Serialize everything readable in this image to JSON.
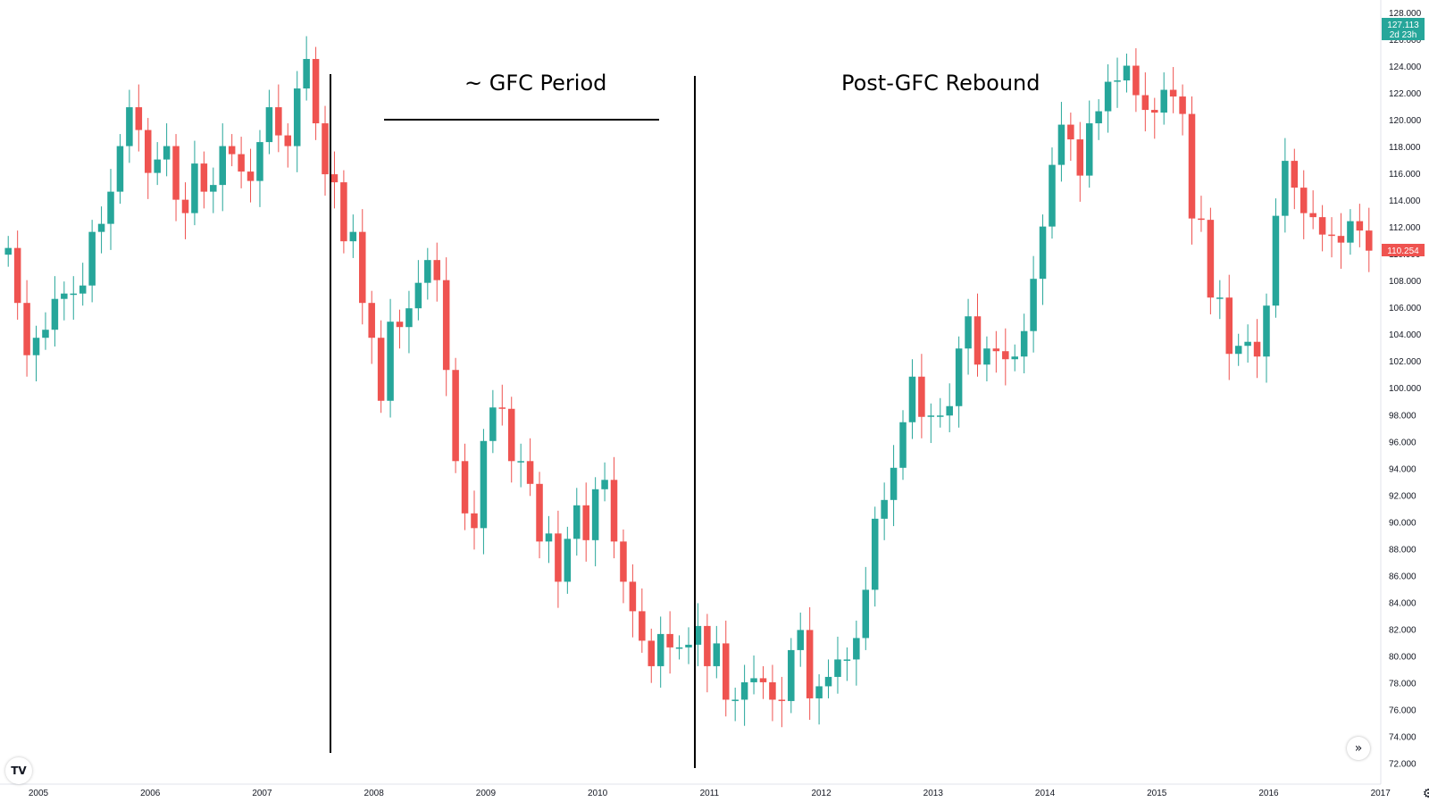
{
  "chart_data": {
    "type": "candlestick",
    "interval": "monthly",
    "colors": {
      "up": "#26a69a",
      "down": "#ef5350",
      "annotation": "#000000"
    },
    "y_ticks": [
      "72.000",
      "74.000",
      "76.000",
      "78.000",
      "80.000",
      "82.000",
      "84.000",
      "86.000",
      "88.000",
      "90.000",
      "92.000",
      "94.000",
      "96.000",
      "98.000",
      "100.000",
      "102.000",
      "104.000",
      "106.000",
      "108.000",
      "110.000",
      "112.000",
      "114.000",
      "116.000",
      "118.000",
      "120.000",
      "122.000",
      "124.000",
      "126.000",
      "128.000"
    ],
    "x_ticks": [
      "2005",
      "2006",
      "2007",
      "2008",
      "2009",
      "2010",
      "2011",
      "2012",
      "2013",
      "2014",
      "2015",
      "2016",
      "2017"
    ],
    "ylim": [
      70.5,
      129.0
    ],
    "annotations": {
      "gfc_label": "~ GFC Period",
      "rebound_label": "Post-GFC Rebound"
    },
    "price_badge": {
      "value": "127.113",
      "countdown": "2d 23h"
    },
    "last_price_badge": {
      "value": "110.254"
    },
    "candles_close": [
      110.5,
      106.4,
      102.5,
      103.8,
      104.4,
      106.7,
      107.1,
      107.1,
      107.7,
      111.7,
      112.3,
      114.7,
      118.1,
      121.0,
      119.3,
      116.1,
      117.1,
      118.1,
      114.1,
      113.1,
      116.8,
      114.7,
      115.2,
      118.1,
      117.5,
      116.2,
      115.5,
      118.4,
      121.0,
      118.9,
      118.1,
      122.4,
      124.6,
      119.8,
      116.0,
      115.4,
      111.0,
      111.7,
      106.4,
      103.8,
      99.1,
      105.0,
      104.6,
      106.0,
      107.9,
      109.6,
      108.1,
      101.4,
      94.6,
      90.7,
      89.6,
      96.1,
      98.6,
      98.5,
      94.6,
      94.6,
      92.9,
      88.6,
      89.2,
      85.6,
      88.8,
      91.3,
      88.7,
      92.5,
      93.2,
      88.6,
      85.6,
      83.4,
      81.2,
      79.3,
      81.7,
      80.7,
      80.7,
      80.9,
      82.3,
      79.3,
      81.0,
      76.8,
      76.8,
      78.1,
      78.4,
      78.1,
      76.8,
      76.7,
      80.5,
      82.0,
      76.9,
      77.8,
      78.5,
      79.8,
      79.8,
      81.4,
      85.0,
      90.3,
      91.7,
      94.1,
      97.5,
      100.9,
      97.9,
      98.0,
      98.0,
      98.7,
      103.0,
      105.4,
      101.8,
      103.0,
      102.8,
      102.2,
      102.4,
      104.3,
      108.2,
      112.1,
      116.7,
      119.7,
      118.6,
      115.9,
      119.8,
      120.7,
      122.9,
      123.0,
      124.1,
      121.9,
      120.8,
      120.6,
      122.3,
      121.8,
      120.5,
      112.7,
      112.6,
      106.8,
      106.8,
      102.6,
      103.2,
      103.5,
      102.4,
      106.2,
      112.9,
      117.0,
      115.0,
      113.1,
      112.8,
      111.5,
      111.4,
      110.9,
      112.5,
      111.8,
      110.3
    ],
    "candles_open": [
      110.0,
      110.5,
      106.4,
      102.5,
      103.8,
      104.4,
      106.7,
      107.1,
      107.1,
      107.7,
      111.7,
      112.3,
      114.7,
      118.1,
      121.0,
      119.3,
      116.1,
      117.1,
      118.1,
      114.1,
      113.1,
      116.8,
      114.7,
      115.2,
      118.1,
      117.5,
      116.2,
      115.5,
      118.4,
      121.0,
      118.9,
      118.1,
      122.4,
      124.6,
      119.8,
      116.0,
      115.4,
      111.0,
      111.7,
      106.4,
      103.8,
      99.1,
      105.0,
      104.6,
      106.0,
      107.9,
      109.6,
      108.1,
      101.4,
      94.6,
      90.7,
      89.6,
      96.1,
      98.6,
      98.5,
      94.6,
      94.6,
      92.9,
      88.6,
      89.2,
      85.6,
      88.8,
      91.3,
      88.7,
      92.5,
      93.2,
      88.6,
      85.6,
      83.4,
      81.2,
      79.3,
      81.7,
      80.7,
      80.7,
      80.9,
      82.3,
      79.3,
      81.0,
      76.8,
      76.8,
      78.1,
      78.4,
      78.1,
      76.8,
      76.7,
      80.5,
      82.0,
      76.9,
      77.8,
      78.5,
      79.8,
      79.8,
      81.4,
      85.0,
      90.3,
      91.7,
      94.1,
      97.5,
      100.9,
      97.9,
      98.0,
      98.0,
      98.7,
      103.0,
      105.4,
      101.8,
      103.0,
      102.8,
      102.2,
      102.4,
      104.3,
      108.2,
      112.1,
      116.7,
      119.7,
      118.6,
      115.9,
      119.8,
      120.7,
      122.9,
      123.0,
      124.1,
      121.9,
      120.8,
      120.6,
      122.3,
      121.8,
      120.5,
      112.7,
      112.6,
      106.8,
      106.8,
      102.6,
      103.2,
      103.5,
      102.4,
      106.2,
      112.9,
      117.0,
      115.0,
      113.1,
      112.8,
      111.5,
      111.4,
      110.9,
      112.5,
      111.8
    ]
  },
  "toolbar": {
    "logo_label": "TV",
    "scroll_label": "»",
    "settings_label": "⚙"
  }
}
